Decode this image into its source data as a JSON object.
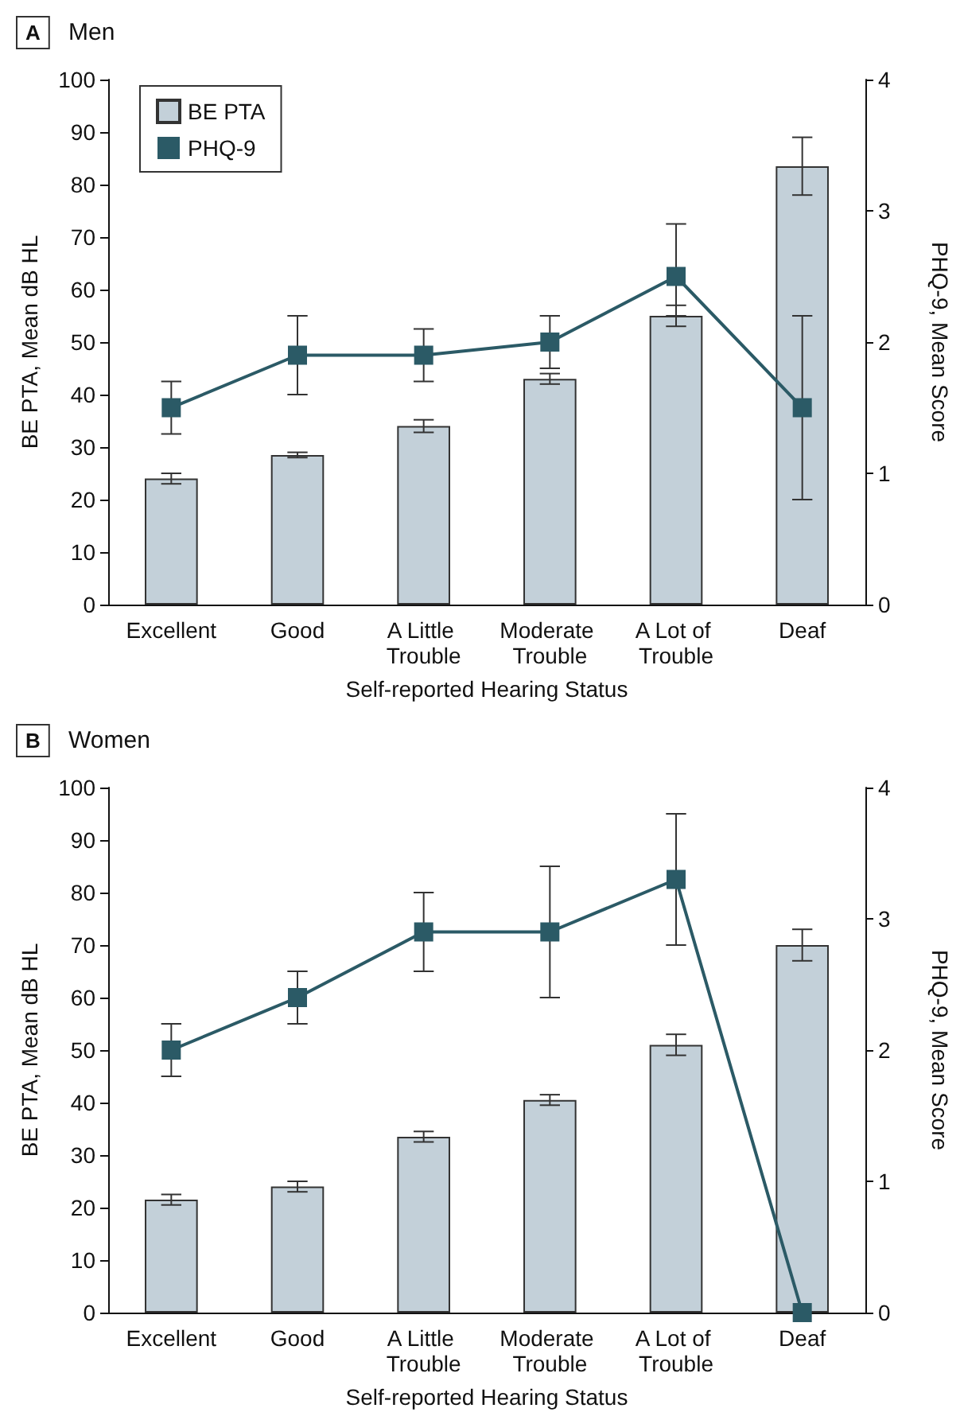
{
  "chart_data": [
    {
      "type": "bar",
      "title": "Men",
      "annotations": [
        "A"
      ],
      "xlabel": "Self-reported Hearing Status",
      "ylabel": "BE PTA, Mean dB HL",
      "y2label": "PHQ-9, Mean Score",
      "categories": [
        "Excellent",
        "Good",
        "A Little Trouble",
        "Moderate Trouble",
        "A Lot of Trouble",
        "Deaf"
      ],
      "series": [
        {
          "name": "BE PTA",
          "color": "#c3d0d9",
          "values": [
            24,
            28.5,
            34,
            43,
            55,
            83.5
          ],
          "errors": [
            1,
            0.5,
            1.2,
            1,
            [
              53,
              57
            ],
            [
              78,
              89
            ]
          ]
        },
        {
          "name": "PHQ-9",
          "type": "line",
          "axis": "y2",
          "color": "#2b5a66",
          "values": [
            1.5,
            1.9,
            1.9,
            2.0,
            2.5,
            1.5
          ],
          "errors": [
            [
              1.3,
              1.7
            ],
            [
              1.6,
              2.2
            ],
            [
              1.7,
              2.1
            ],
            [
              1.8,
              2.2
            ],
            [
              2.2,
              2.9
            ],
            [
              0.8,
              2.2
            ]
          ]
        }
      ],
      "ylim": [
        0,
        100
      ],
      "yticks": [
        0,
        10,
        20,
        30,
        40,
        50,
        60,
        70,
        80,
        90,
        100
      ],
      "y2lim": [
        0,
        4
      ],
      "y2ticks": [
        0,
        1,
        2,
        3,
        4
      ],
      "legend": "top left",
      "grid": false,
      "marker": "square",
      "line_style": "solid"
    },
    {
      "type": "bar",
      "title": "Women",
      "annotations": [
        "B"
      ],
      "xlabel": "Self-reported Hearing Status",
      "ylabel": "BE PTA, Mean dB HL",
      "y2label": "PHQ-9, Mean Score",
      "categories": [
        "Excellent",
        "Good",
        "A Little Trouble",
        "Moderate Trouble",
        "A Lot of Trouble",
        "Deaf"
      ],
      "series": [
        {
          "color": "#c3d0d9",
          "values": [
            21.5,
            24,
            33.5,
            40.5,
            51,
            70
          ],
          "errors": [
            1,
            1,
            1,
            1,
            2,
            3
          ]
        },
        {
          "type": "line",
          "axis": "y2",
          "color": "#2b5a66",
          "values": [
            2.0,
            2.4,
            2.9,
            2.9,
            3.3,
            0
          ],
          "errors": [
            [
              1.8,
              2.2
            ],
            [
              2.2,
              2.6
            ],
            [
              2.6,
              3.2
            ],
            [
              2.4,
              3.4
            ],
            [
              2.8,
              3.8
            ],
            null
          ]
        }
      ],
      "ylim": [
        0,
        100
      ],
      "yticks": [
        0,
        10,
        20,
        30,
        40,
        50,
        60,
        70,
        80,
        90,
        100
      ],
      "y2lim": [
        0,
        4
      ],
      "y2ticks": [
        0,
        1,
        2,
        3,
        4
      ],
      "legend": false,
      "grid": false,
      "marker": "square",
      "line_style": "solid"
    }
  ]
}
